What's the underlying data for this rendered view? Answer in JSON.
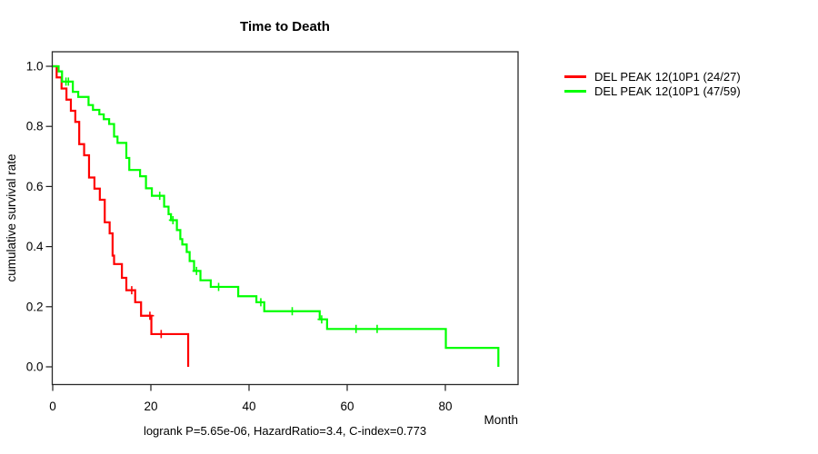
{
  "caption": "logrank P=5.65e-06, HazardRatio=3.4, C-index=0.773",
  "chart_data": {
    "type": "line",
    "subtype": "kaplan_meier_step_survival",
    "title": "Time to Death",
    "xlabel": "Month",
    "ylabel": "cumulative survival rate",
    "xlim": [
      0,
      95
    ],
    "ylim": [
      0.0,
      1.0
    ],
    "x_ticks": [
      0,
      20,
      40,
      60,
      80
    ],
    "y_ticks": [
      "0.0",
      "0.2",
      "0.4",
      "0.6",
      "0.8",
      "1.0"
    ],
    "grid": false,
    "legend_position": "right-outside",
    "stats": {
      "logrank_p": "5.65e-06",
      "hazard_ratio": "3.4",
      "c_index": "0.773"
    },
    "series": [
      {
        "label": "DEL PEAK 12(10P1 (24/27)",
        "color": "#ff0000",
        "events": "24/27",
        "points": [
          [
            0,
            1.0
          ],
          [
            0.8,
            0.963
          ],
          [
            1.8,
            0.926
          ],
          [
            2.8,
            0.889
          ],
          [
            3.7,
            0.852
          ],
          [
            4.6,
            0.815
          ],
          [
            5.4,
            0.741
          ],
          [
            6.4,
            0.704
          ],
          [
            7.4,
            0.63
          ],
          [
            8.5,
            0.593
          ],
          [
            9.6,
            0.556
          ],
          [
            10.6,
            0.481
          ],
          [
            11.6,
            0.444
          ],
          [
            12.2,
            0.37
          ],
          [
            12.5,
            0.342
          ],
          [
            14.1,
            0.296
          ],
          [
            15.0,
            0.255
          ],
          [
            16.8,
            0.215
          ],
          [
            18.0,
            0.17
          ],
          [
            20.1,
            0.109
          ],
          [
            27.6,
            0.0
          ]
        ],
        "censors": [
          [
            16.1,
            0.255
          ],
          [
            19.8,
            0.17
          ],
          [
            22.1,
            0.109
          ]
        ]
      },
      {
        "label": "DEL PEAK 12(10P1 (47/59)",
        "color": "#00ff00",
        "events": "47/59",
        "points": [
          [
            0,
            1.0
          ],
          [
            1.2,
            0.983
          ],
          [
            1.9,
            0.949
          ],
          [
            4.1,
            0.915
          ],
          [
            5.2,
            0.898
          ],
          [
            7.3,
            0.871
          ],
          [
            8.2,
            0.855
          ],
          [
            9.5,
            0.84
          ],
          [
            10.4,
            0.824
          ],
          [
            11.5,
            0.808
          ],
          [
            12.5,
            0.766
          ],
          [
            13.2,
            0.745
          ],
          [
            15.0,
            0.695
          ],
          [
            15.6,
            0.655
          ],
          [
            17.8,
            0.634
          ],
          [
            19.0,
            0.594
          ],
          [
            20.2,
            0.569
          ],
          [
            22.7,
            0.533
          ],
          [
            23.6,
            0.508
          ],
          [
            24.1,
            0.488
          ],
          [
            25.3,
            0.455
          ],
          [
            26.0,
            0.425
          ],
          [
            26.4,
            0.407
          ],
          [
            27.3,
            0.382
          ],
          [
            27.9,
            0.352
          ],
          [
            28.8,
            0.319
          ],
          [
            30.1,
            0.288
          ],
          [
            32.2,
            0.266
          ],
          [
            37.8,
            0.235
          ],
          [
            41.5,
            0.215
          ],
          [
            43.1,
            0.185
          ],
          [
            54.4,
            0.158
          ],
          [
            55.9,
            0.126
          ],
          [
            80.1,
            0.063
          ],
          [
            90.8,
            0.0
          ]
        ],
        "censors": [
          [
            2.7,
            0.949
          ],
          [
            3.2,
            0.949
          ],
          [
            21.8,
            0.569
          ],
          [
            24.5,
            0.488
          ],
          [
            29.3,
            0.319
          ],
          [
            33.8,
            0.266
          ],
          [
            42.4,
            0.215
          ],
          [
            48.8,
            0.185
          ],
          [
            54.8,
            0.158
          ],
          [
            61.8,
            0.126
          ],
          [
            66.1,
            0.126
          ]
        ]
      }
    ]
  }
}
